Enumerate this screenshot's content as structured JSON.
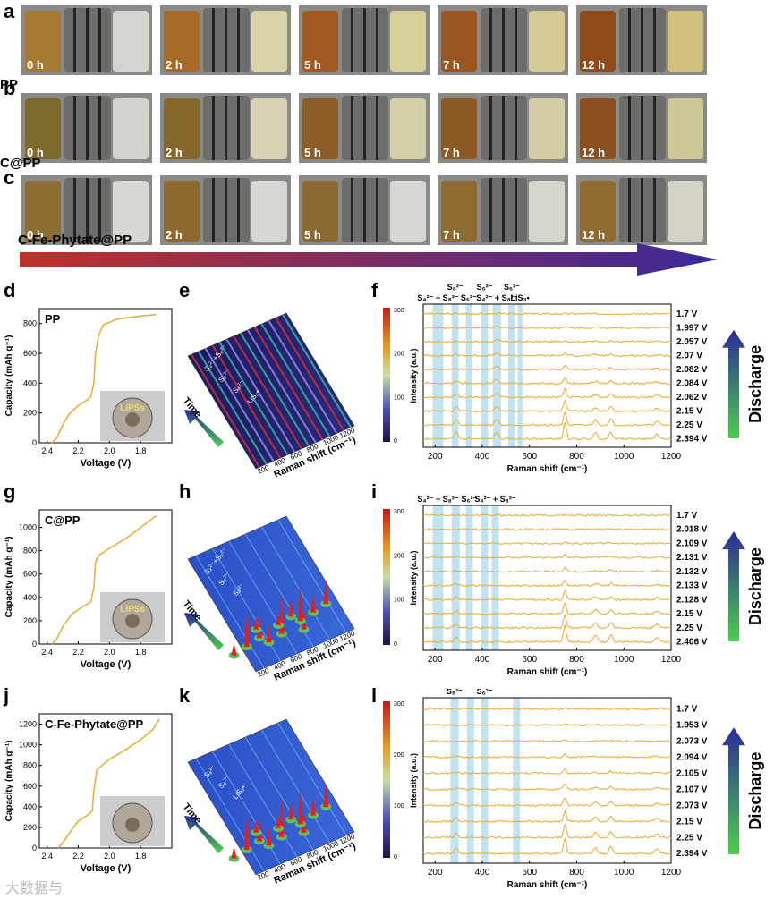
{
  "panels": {
    "a": "a",
    "b": "b",
    "c": "c",
    "d": "d",
    "e": "e",
    "f": "f",
    "g": "g",
    "h": "h",
    "i": "i",
    "j": "j",
    "k": "k",
    "l": "l"
  },
  "rows": [
    {
      "sample": "PP",
      "times": [
        "0 h",
        "2 h",
        "5 h",
        "7 h",
        "12 h"
      ],
      "left": [
        "#a57a32",
        "#a86a2a",
        "#a35a22",
        "#9a5520",
        "#8f4a1c"
      ],
      "right": [
        "#d6d4ce",
        "#d8d4a8",
        "#d6d09a",
        "#d4cc92",
        "#cfc07c"
      ]
    },
    {
      "sample": "C@PP",
      "times": [
        "0 h",
        "2 h",
        "5 h",
        "7 h",
        "12 h"
      ],
      "left": [
        "#7c6a2c",
        "#86672a",
        "#8a5e26",
        "#8c5a24",
        "#8a5022"
      ],
      "right": [
        "#d4d4ce",
        "#d6d4b4",
        "#d4d0aa",
        "#d4cea6",
        "#cfc898"
      ]
    },
    {
      "sample": "C-Fe-Phytate@PP",
      "times": [
        "0 h",
        "2 h",
        "5 h",
        "7 h",
        "12 h"
      ],
      "left": [
        "#8c6e32",
        "#8c6a2e",
        "#8a6a30",
        "#8c6a30",
        "#8e6a30"
      ],
      "right": [
        "#d8d8d4",
        "#d8d8d2",
        "#d8d8d2",
        "#d6d6ce",
        "#d6d4c8"
      ]
    }
  ],
  "colors": {
    "curve": "#e8b040",
    "band": "#a8d8ec",
    "arrow_start": "#c0302a",
    "arrow_end": "#3a2a9a",
    "discharge_top": "#2a2a9a",
    "discharge_bottom": "#4ad04a",
    "photo_gray": "#cccccc",
    "cell_face": "#b0a89a",
    "cell_center": "#7a6e5a",
    "heat_low": "#2a4fc8"
  },
  "capacity_charts": [
    {
      "title": "PP",
      "ylabel": "Capacity (mAh g⁻¹)",
      "xlabel": "Voltage (V)",
      "yticks": [
        "0",
        "200",
        "400",
        "600",
        "800"
      ],
      "xticks": [
        "2.4",
        "2.2",
        "2.0",
        "1.8"
      ],
      "inset": "LiPSs",
      "ymax": 900,
      "curve": [
        [
          2.37,
          0
        ],
        [
          2.34,
          30
        ],
        [
          2.3,
          120
        ],
        [
          2.26,
          190
        ],
        [
          2.2,
          250
        ],
        [
          2.14,
          290
        ],
        [
          2.12,
          310
        ],
        [
          2.1,
          400
        ],
        [
          2.09,
          600
        ],
        [
          2.07,
          720
        ],
        [
          2.04,
          790
        ],
        [
          1.95,
          830
        ],
        [
          1.8,
          850
        ],
        [
          1.7,
          860
        ]
      ]
    },
    {
      "title": "C@PP",
      "ylabel": "Capacity (mAh g⁻¹)",
      "xlabel": "Voltage (V)",
      "yticks": [
        "0",
        "200",
        "400",
        "600",
        "800",
        "1000"
      ],
      "xticks": [
        "2.4",
        "2.2",
        "2.0",
        "1.8"
      ],
      "inset": "LiPSs",
      "ymax": 1150,
      "curve": [
        [
          2.37,
          0
        ],
        [
          2.34,
          40
        ],
        [
          2.3,
          150
        ],
        [
          2.24,
          260
        ],
        [
          2.16,
          330
        ],
        [
          2.12,
          360
        ],
        [
          2.1,
          480
        ],
        [
          2.09,
          700
        ],
        [
          2.07,
          760
        ],
        [
          2.0,
          820
        ],
        [
          1.9,
          900
        ],
        [
          1.8,
          1000
        ],
        [
          1.7,
          1100
        ]
      ]
    },
    {
      "title": "C-Fe-Phytate@PP",
      "ylabel": "Capacity (mAh g⁻¹)",
      "xlabel": "Voltage (V)",
      "yticks": [
        "0",
        "200",
        "400",
        "600",
        "800",
        "1000",
        "1200"
      ],
      "xticks": [
        "2.4",
        "2.2",
        "2.0",
        "1.8"
      ],
      "inset": "",
      "ymax": 1300,
      "curve": [
        [
          2.33,
          0
        ],
        [
          2.3,
          50
        ],
        [
          2.25,
          160
        ],
        [
          2.2,
          260
        ],
        [
          2.14,
          320
        ],
        [
          2.11,
          360
        ],
        [
          2.1,
          560
        ],
        [
          2.08,
          760
        ],
        [
          2.0,
          860
        ],
        [
          1.9,
          950
        ],
        [
          1.8,
          1050
        ],
        [
          1.72,
          1150
        ],
        [
          1.68,
          1250
        ]
      ]
    }
  ],
  "maps": [
    {
      "xlabel": "Raman shift (cm⁻¹)",
      "xticks": [
        "200",
        "400",
        "600",
        "800",
        "1000",
        "1200"
      ],
      "time": "Time",
      "labels": [
        "S₄²⁻+S₈²⁻",
        "S₈²⁻",
        "S₆²⁻",
        "LiS₃•"
      ],
      "dark": true
    },
    {
      "xlabel": "Raman shift (cm⁻¹)",
      "xticks": [
        "200",
        "400",
        "600",
        "800",
        "1000",
        "1200"
      ],
      "time": "Time",
      "labels": [
        "S₄²⁻+S₈²⁻",
        "S₆²⁻",
        "S₈²⁻"
      ],
      "dark": false
    },
    {
      "xlabel": "Raman shift (cm⁻¹)",
      "xticks": [
        "200",
        "400",
        "600",
        "800",
        "1000",
        "1200"
      ],
      "time": "Time",
      "labels": [
        "S₈²⁻",
        "S₆²⁻",
        "LiS₃•"
      ],
      "dark": false
    }
  ],
  "spectra": [
    {
      "ylabel": "Intensity (a.u.)",
      "xlabel": "Raman shift (cm⁻¹)",
      "xticks": [
        "200",
        "400",
        "600",
        "800",
        "1000",
        "1200"
      ],
      "cticks": [
        "300",
        "200",
        "100",
        "0"
      ],
      "voltages": [
        "1.7 V",
        "1.997 V",
        "2.057 V",
        "2.07 V",
        "2.082 V",
        "2.084 V",
        "2.062 V",
        "2.15 V",
        "2.25 V",
        "2.394 V"
      ],
      "bands": [
        [
          190,
          235
        ],
        [
          270,
          300
        ],
        [
          330,
          355
        ],
        [
          395,
          425
        ],
        [
          445,
          480
        ],
        [
          510,
          540
        ],
        [
          550,
          570
        ]
      ],
      "peaks": [
        "S₄²⁻ + S₈²⁻",
        "S₈²⁻",
        "S₆²⁻",
        "S₆²⁻",
        "S₄²⁻ + S₈²⁻",
        "S₆²⁻",
        "LiS₃•"
      ],
      "discharge": "Discharge"
    },
    {
      "ylabel": "Intensity (a.u.)",
      "xlabel": "Raman shift (cm⁻¹)",
      "xticks": [
        "200",
        "400",
        "600",
        "800",
        "1000",
        "1200"
      ],
      "cticks": [
        "300",
        "200",
        "100",
        "0"
      ],
      "voltages": [
        "1.7 V",
        "2.018 V",
        "2.109 V",
        "2.131 V",
        "2.132 V",
        "2.133 V",
        "2.128 V",
        "2.15 V",
        "2.25 V",
        "2.406 V"
      ],
      "bands": [
        [
          190,
          235
        ],
        [
          270,
          305
        ],
        [
          330,
          360
        ],
        [
          395,
          425
        ],
        [
          440,
          470
        ]
      ],
      "peaks": [
        "S₄²⁻ + S₈²⁻",
        "S₈²⁻",
        "S₆²⁻",
        "S₆²⁻",
        "S₄²⁻ + S₈²⁻"
      ],
      "discharge": "Discharge"
    },
    {
      "ylabel": "Intensity (a.u.)",
      "xlabel": "Raman shift (cm⁻¹)",
      "xticks": [
        "200",
        "400",
        "600",
        "800",
        "1000",
        "1200"
      ],
      "cticks": [
        "300",
        "200",
        "100",
        "0"
      ],
      "voltages": [
        "1.7 V",
        "1.953 V",
        "2.073 V",
        "2.094 V",
        "2.105 V",
        "2.107 V",
        "2.073 V",
        "2.15 V",
        "2.25 V",
        "2.394 V"
      ],
      "bands": [
        [
          265,
          300
        ],
        [
          335,
          365
        ],
        [
          395,
          425
        ],
        [
          530,
          560
        ]
      ],
      "peaks": [
        "S₈²⁻",
        "S₆²⁻",
        "S₆²⁻",
        "LiS₃•"
      ],
      "discharge": "Discharge"
    }
  ],
  "watermark": "大数据与"
}
